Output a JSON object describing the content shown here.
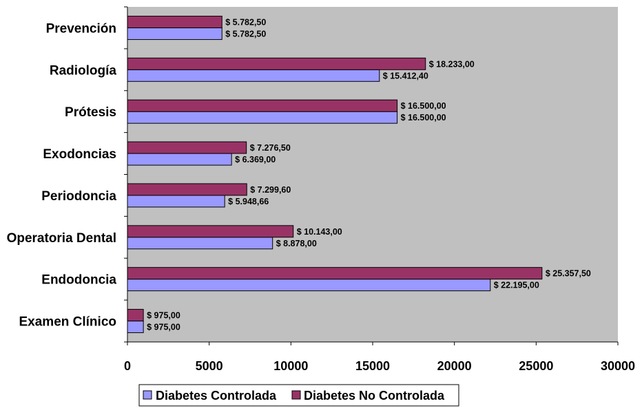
{
  "chart_data": {
    "type": "bar",
    "orientation": "horizontal",
    "categories": [
      "Prevención",
      "Radiología",
      "Prótesis",
      "Exodoncias",
      "Periodoncia",
      "Operatoria Dental",
      "Endodoncia",
      "Examen Clínico"
    ],
    "series": [
      {
        "name": "Diabetes Controlada",
        "color": "#9999ff",
        "values": [
          5782.5,
          15412.4,
          16500,
          6369,
          5948.66,
          8878,
          22195,
          975
        ],
        "labels": [
          "$ 5.782,50",
          "$ 15.412,40",
          "$ 16.500,00",
          "$ 6.369,00",
          "$ 5.948,66",
          "$ 8.878,00",
          "$ 22.195,00",
          "$ 975,00"
        ]
      },
      {
        "name": "Diabetes No Controlada",
        "color": "#993366",
        "values": [
          5782.5,
          18233,
          16500,
          7276.5,
          7299.6,
          10143,
          25357.5,
          975
        ],
        "labels": [
          "$ 5.782,50",
          "$ 18.233,00",
          "$ 16.500,00",
          "$ 7.276,50",
          "$ 7.299,60",
          "$ 10.143,00",
          "$ 25.357,50",
          "$ 975,00"
        ]
      }
    ],
    "xlim": [
      0,
      30000
    ],
    "xticks": [
      "0",
      "5000",
      "10000",
      "15000",
      "20000",
      "25000",
      "30000"
    ],
    "title": "",
    "xlabel": "",
    "ylabel": "",
    "grid": false,
    "plot_background": "#c0c0c0",
    "legend_position": "bottom"
  }
}
